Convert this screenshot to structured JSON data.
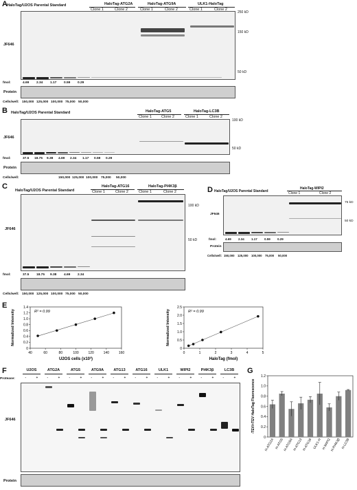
{
  "panels": {
    "A": {
      "letter": "A",
      "header_left": "HaloTag/U2OS Parental Standard",
      "groups": [
        "HaloTag-ATG2A",
        "HaloTag-ATG9A",
        "ULK1-HaloTag"
      ],
      "clones": [
        "Clone 1",
        "Clone 2"
      ],
      "markers": [
        "250 kD",
        "150 kD",
        "50 kD"
      ],
      "row_label": "JF646",
      "fmol_label": "fmol:",
      "fmol": [
        "4.69",
        "2.34",
        "1.17",
        "0.59",
        "0.29"
      ],
      "protein_label": "Protein",
      "cells_label": "Cells/well:",
      "cells": [
        "150,000",
        "125,000",
        "100,000",
        "75,000",
        "50,000"
      ]
    },
    "B": {
      "letter": "B",
      "header_left": "HaloTag/U2OS Parental Standard",
      "groups": [
        "HaloTag-ATG5",
        "HaloTag-LC3B"
      ],
      "clones": [
        "Clone 1",
        "Clone 2"
      ],
      "markers": [
        "100 kD",
        "50 kD"
      ],
      "row_label": "JF646",
      "fmol_label": "fmol:",
      "fmol": [
        "37.5",
        "18.75",
        "9.38",
        "4.69",
        "2.34",
        "1.17",
        "0.59",
        "0.29"
      ],
      "protein_label": "Protein",
      "cells_label": "Cells/well:",
      "cells": [
        "150,000",
        "125,000",
        "100,000",
        "75,000",
        "50,000"
      ]
    },
    "C": {
      "letter": "C",
      "header_left": "HaloTag/U2OS Parental Standard",
      "groups": [
        "HaloTag-ATG16",
        "HaloTag-PI4K3β"
      ],
      "clones": [
        "Clone 1",
        "Clone 2"
      ],
      "markers": [
        "100 kD",
        "50 kD"
      ],
      "row_label": "JF646",
      "fmol_label": "fmol:",
      "fmol": [
        "37.5",
        "18.75",
        "9.38",
        "4.69",
        "2.34"
      ],
      "cells_label": "Cells/well:",
      "cells": [
        "150,000",
        "125,000",
        "100,000",
        "75,000",
        "50,000"
      ]
    },
    "D": {
      "letter": "D",
      "header_left": "HaloTag/U2OS Parental Standard",
      "groups": [
        "HaloTag-WIPI2"
      ],
      "clones": [
        "Clone 1",
        "Clone 2"
      ],
      "markers": [
        "75 kD",
        "50 kD"
      ],
      "row_label": "JF646",
      "fmol_label": "fmol:",
      "fmol": [
        "4.69",
        "2.34",
        "1.17",
        "0.59",
        "0.29"
      ],
      "protein_label": "Protein",
      "cells_label": "Cells/well:",
      "cells": [
        "150,000",
        "125,000",
        "100,000",
        "75,000",
        "50,000"
      ]
    },
    "E": {
      "letter": "E"
    },
    "F": {
      "letter": "F",
      "lanes": [
        "U2OS",
        "ATG2A",
        "ATG5",
        "ATG9A",
        "ATG13",
        "ATG16",
        "ULK1",
        "WIPI2",
        "PI4K3β",
        "LC3B"
      ],
      "protease_label": "Protease:",
      "signs": [
        "-",
        "+"
      ],
      "row_label": "JF646",
      "protein_label": "Protein"
    },
    "G": {
      "letter": "G"
    }
  },
  "chart_data": [
    {
      "type": "scatter",
      "annotation": "R² = 0.99",
      "xlabel": "U2OS cells (x10³)",
      "ylabel": "Normalized Intensity",
      "xlim": [
        40,
        160
      ],
      "ylim": [
        0,
        1.4
      ],
      "xticks": [
        "40",
        "60",
        "80",
        "100",
        "120",
        "140",
        "160"
      ],
      "yticks": [
        "0",
        "0.2",
        "0.4",
        "0.6",
        "0.8",
        "1.0",
        "1.2",
        "1.4"
      ],
      "x": [
        50,
        75,
        100,
        125,
        150
      ],
      "y": [
        0.42,
        0.6,
        0.8,
        1.0,
        1.2
      ]
    },
    {
      "type": "scatter",
      "annotation": "R² = 0.99",
      "xlabel": "HaloTag (fmol)",
      "ylabel": "Normalized Intensity",
      "xlim": [
        0,
        5
      ],
      "ylim": [
        0,
        2.5
      ],
      "xticks": [
        "0",
        "1",
        "2",
        "3",
        "4",
        "5"
      ],
      "yticks": [
        "0",
        "0.5",
        "1.0",
        "1.5",
        "2.0",
        "2.5"
      ],
      "x": [
        0.29,
        0.59,
        1.17,
        2.34,
        4.69
      ],
      "y": [
        0.15,
        0.25,
        0.5,
        0.98,
        1.93
      ]
    },
    {
      "type": "bar",
      "ylabel": "-TEV/+TEV HaloTag Fluorescence",
      "ylim": [
        0,
        1.2
      ],
      "yticks": [
        "0",
        "0.2",
        "0.4",
        "0.6",
        "0.8",
        "1.0",
        "1.2"
      ],
      "categories": [
        "H-ATG2A",
        "H-ATG5",
        "H-ATG9A",
        "H-ATG13",
        "H-ATG16",
        "ULK1-H",
        "H-WIPI2",
        "H-PI4K3β",
        "H-LC3B"
      ],
      "values": [
        0.64,
        0.85,
        0.55,
        0.66,
        0.73,
        0.85,
        0.58,
        0.8,
        0.92
      ],
      "errors": [
        0.08,
        0.04,
        0.14,
        0.12,
        0.06,
        0.22,
        0.07,
        0.08,
        0.01
      ]
    }
  ]
}
